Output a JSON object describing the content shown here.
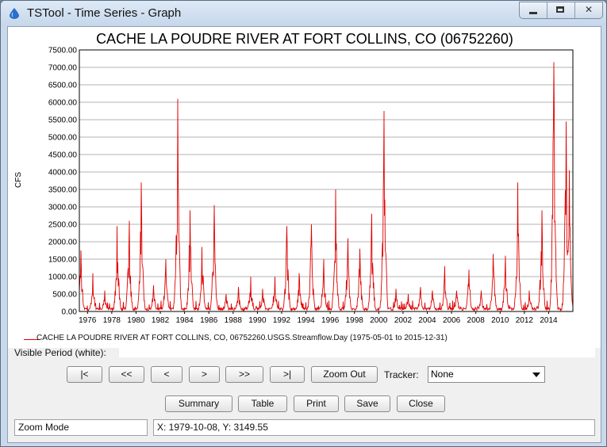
{
  "window": {
    "title": "TSTool - Time Series - Graph"
  },
  "graph": {
    "title": "CACHE LA POUDRE RIVER AT FORT COLLINS, CO (06752260)",
    "legend": "CACHE LA POUDRE RIVER AT FORT COLLINS, CO, 06752260.USGS.Streamflow.Day (1975-05-01 to 2015-12-31)"
  },
  "chart_data": {
    "type": "line",
    "title": "CACHE LA POUDRE RIVER AT FORT COLLINS, CO (06752260)",
    "xlabel": "",
    "ylabel": "CFS",
    "xlim": [
      "1975-05-01",
      "2015-12-31"
    ],
    "ylim": [
      0,
      7500
    ],
    "y_ticks": [
      "0.00",
      "500.00",
      "1000.00",
      "1500.00",
      "2000.00",
      "2500.00",
      "3000.00",
      "3500.00",
      "4000.00",
      "4500.00",
      "5000.00",
      "5500.00",
      "6000.00",
      "6500.00",
      "7000.00",
      "7500.00"
    ],
    "x_ticks": [
      "1976",
      "1978",
      "1980",
      "1982",
      "1984",
      "1986",
      "1988",
      "1990",
      "1992",
      "1994",
      "1996",
      "1998",
      "2000",
      "2002",
      "2004",
      "2006",
      "2008",
      "2010",
      "2012",
      "2014"
    ],
    "grid": true,
    "legend_position": "bottom",
    "series": [
      {
        "name": "CACHE LA POUDRE RIVER AT FORT COLLINS, CO, 06752260.USGS.Streamflow.Day (1975-05-01 to 2015-12-31)",
        "color": "#e00000",
        "annual_peaks": [
          {
            "x": "1975-06-15",
            "y": 1750
          },
          {
            "x": "1976-06-10",
            "y": 1100
          },
          {
            "x": "1977-06-05",
            "y": 600
          },
          {
            "x": "1978-06-12",
            "y": 2450
          },
          {
            "x": "1979-06-08",
            "y": 2600
          },
          {
            "x": "1980-06-05",
            "y": 3700
          },
          {
            "x": "1981-06-10",
            "y": 750
          },
          {
            "x": "1982-06-15",
            "y": 1500
          },
          {
            "x": "1983-06-10",
            "y": 6100
          },
          {
            "x": "1984-06-12",
            "y": 2900
          },
          {
            "x": "1985-06-10",
            "y": 1850
          },
          {
            "x": "1986-06-08",
            "y": 3050
          },
          {
            "x": "1987-06-01",
            "y": 500
          },
          {
            "x": "1988-06-05",
            "y": 700
          },
          {
            "x": "1989-06-10",
            "y": 1000
          },
          {
            "x": "1990-06-12",
            "y": 650
          },
          {
            "x": "1991-06-10",
            "y": 1000
          },
          {
            "x": "1992-06-05",
            "y": 2450
          },
          {
            "x": "1993-06-12",
            "y": 1100
          },
          {
            "x": "1994-06-10",
            "y": 2500
          },
          {
            "x": "1995-06-15",
            "y": 1500
          },
          {
            "x": "1996-06-10",
            "y": 3500
          },
          {
            "x": "1997-06-12",
            "y": 2100
          },
          {
            "x": "1998-06-10",
            "y": 1800
          },
          {
            "x": "1999-06-05",
            "y": 2800
          },
          {
            "x": "2000-06-10",
            "y": 5750
          },
          {
            "x": "2001-06-05",
            "y": 650
          },
          {
            "x": "2002-06-01",
            "y": 500
          },
          {
            "x": "2003-06-10",
            "y": 700
          },
          {
            "x": "2004-06-05",
            "y": 600
          },
          {
            "x": "2005-06-10",
            "y": 1300
          },
          {
            "x": "2006-06-05",
            "y": 600
          },
          {
            "x": "2007-06-08",
            "y": 1200
          },
          {
            "x": "2008-06-10",
            "y": 600
          },
          {
            "x": "2009-06-10",
            "y": 1650
          },
          {
            "x": "2010-06-12",
            "y": 1600
          },
          {
            "x": "2011-06-15",
            "y": 3700
          },
          {
            "x": "2012-06-01",
            "y": 600
          },
          {
            "x": "2013-06-10",
            "y": 2900
          },
          {
            "x": "2014-06-05",
            "y": 7150
          },
          {
            "x": "2015-06-10",
            "y": 5450
          },
          {
            "x": "2015-09-10",
            "y": 4050
          }
        ]
      }
    ]
  },
  "period": {
    "label": "Visible Period (white):",
    "value": ""
  },
  "nav": {
    "first": "|<",
    "back_big": "<<",
    "back": "<",
    "forward": ">",
    "forward_big": ">>",
    "last": ">|",
    "zoom_out": "Zoom Out"
  },
  "tracker": {
    "label": "Tracker:",
    "value": "None"
  },
  "actions": {
    "summary": "Summary",
    "table": "Table",
    "print": "Print",
    "save": "Save",
    "close": "Close"
  },
  "status": {
    "mode": "Zoom Mode",
    "coords": "X:  1979-10-08,  Y:  3149.55"
  }
}
